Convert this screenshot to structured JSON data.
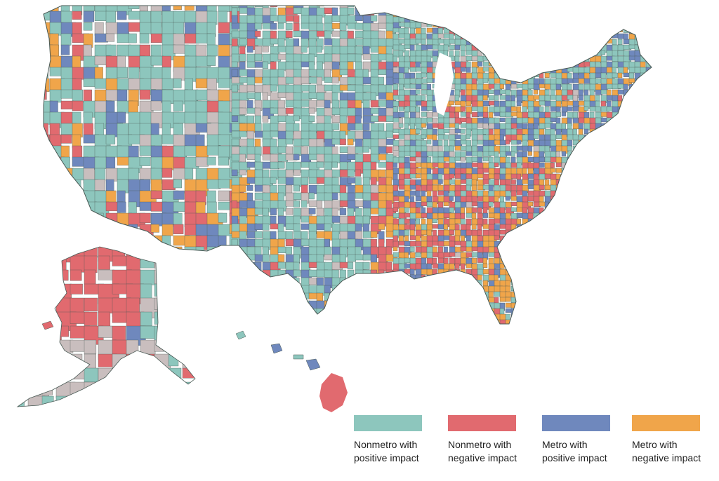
{
  "colors": {
    "nonmetro_positive": "#8dc6bd",
    "nonmetro_negative": "#e16a6f",
    "metro_positive": "#6f88bd",
    "metro_negative": "#f0a54a",
    "no_data": "#c9bebe",
    "border": "#4a5a55"
  },
  "legend": {
    "items": [
      {
        "key": "nonmetro_positive",
        "label": "Nonmetro with\npositive impact"
      },
      {
        "key": "nonmetro_negative",
        "label": "Nonmetro with\nnegative impact"
      },
      {
        "key": "metro_positive",
        "label": "Metro with\npositive impact"
      },
      {
        "key": "metro_negative",
        "label": "Metro with\nnegative impact"
      }
    ]
  }
}
